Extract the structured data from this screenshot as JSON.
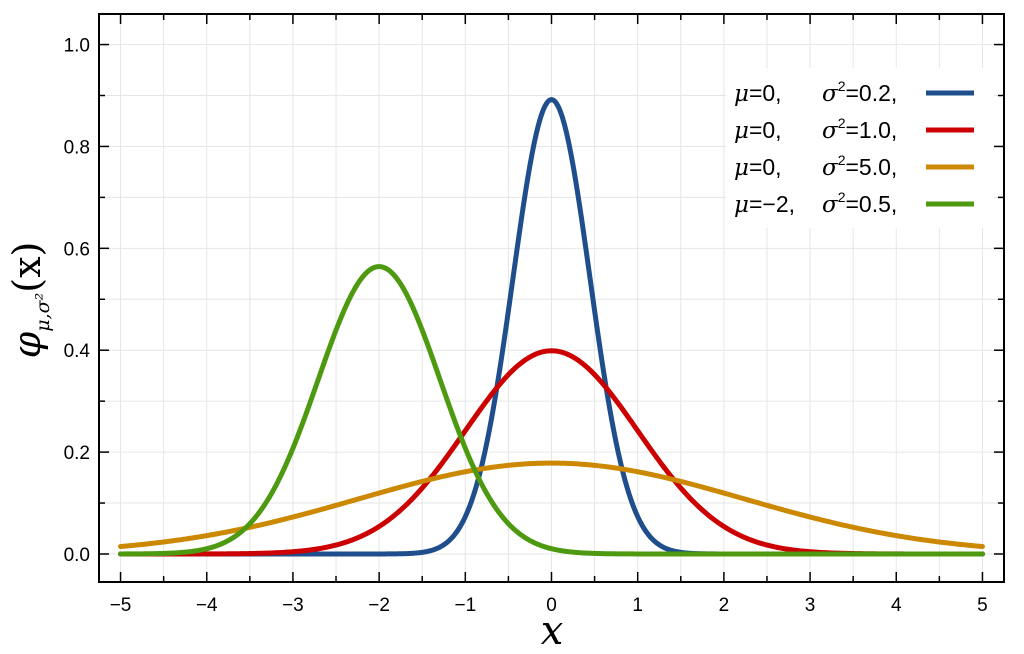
{
  "chart_data": {
    "type": "line",
    "title": "",
    "xlabel": "x",
    "ylabel_main": "φ",
    "ylabel_sub": "μ,σ²",
    "ylabel_arg": "(x)",
    "xlim": [
      -5.25,
      5.25
    ],
    "ylim": [
      -0.055,
      1.06
    ],
    "x_ticks": [
      -5,
      -4,
      -3,
      -2,
      -1,
      0,
      1,
      2,
      3,
      4,
      5
    ],
    "x_tick_labels": [
      "−5",
      "−4",
      "−3",
      "−2",
      "−1",
      "0",
      "1",
      "2",
      "3",
      "4",
      "5"
    ],
    "y_ticks": [
      0.0,
      0.2,
      0.4,
      0.6,
      0.8,
      1.0
    ],
    "y_tick_labels": [
      "0.0",
      "0.2",
      "0.4",
      "0.6",
      "0.8",
      "1.0"
    ],
    "x_range": [
      -5,
      5
    ],
    "grid": true,
    "legend_position": "top-right",
    "series": [
      {
        "name": "μ=0,   σ²=0.2,",
        "mu_label": "0",
        "var_label": "0.2",
        "mu": 0,
        "variance": 0.2,
        "color": "#1f4e8c"
      },
      {
        "name": "μ=0,   σ²=1.0,",
        "mu_label": "0",
        "var_label": "1.0",
        "mu": 0,
        "variance": 1.0,
        "color": "#cc0000"
      },
      {
        "name": "μ=0,   σ²=5.0,",
        "mu_label": "0",
        "var_label": "5.0",
        "mu": 0,
        "variance": 5.0,
        "color": "#cc8800"
      },
      {
        "name": "μ=−2, σ²=0.5,",
        "mu_label": "−2",
        "var_label": "0.5",
        "mu": -2,
        "variance": 0.5,
        "color": "#4d9a10"
      }
    ]
  }
}
